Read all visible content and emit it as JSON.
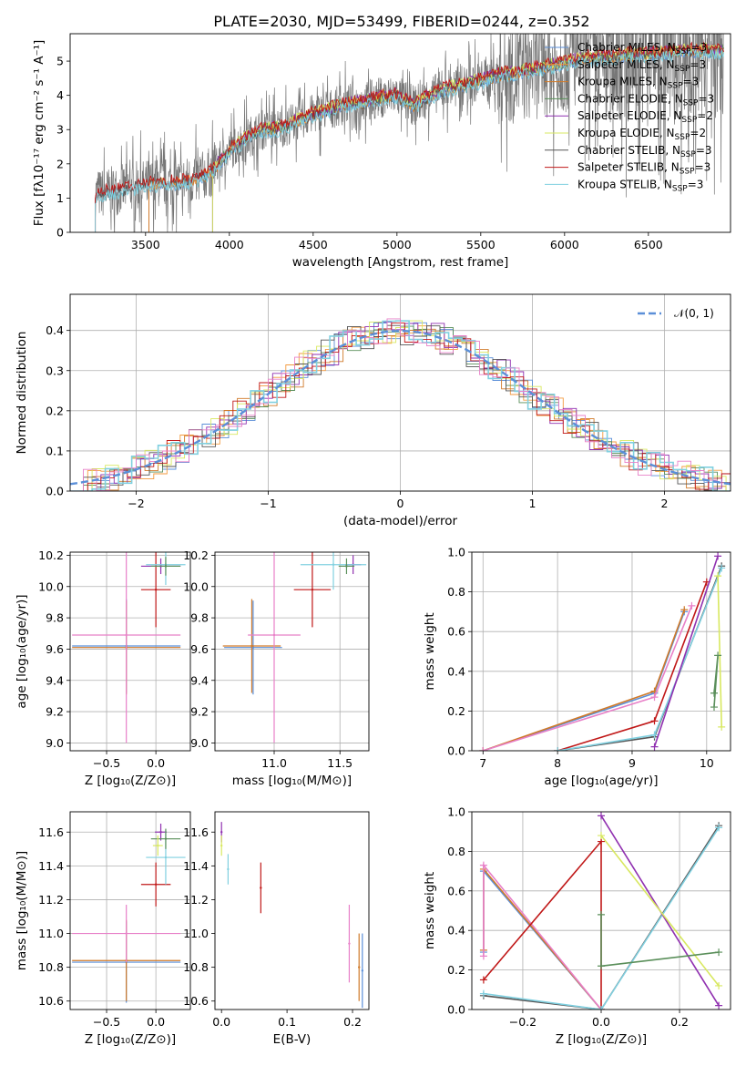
{
  "figure_title": "PLATE=2030, MJD=53499, FIBERID=0244, z=0.352",
  "colors": {
    "Chabrier MILES": "#5b8fd8",
    "Salpeter MILES": "#f39a3f",
    "Kroupa MILES": "#d07a2a",
    "Chabrier ELODIE": "#5a8f5a",
    "Salpeter ELODIE": "#9030b0",
    "Kroupa ELODIE": "#d8e860",
    "Chabrier STELIB": "#555555",
    "Salpeter STELIB": "#c01818",
    "Kroupa STELIB": "#80d0e0",
    "pink": "#e880c8",
    "data": "#777777",
    "gauss": "#5b8fd8"
  },
  "chart_data": [
    {
      "id": "spectrum",
      "type": "line",
      "title": "PLATE=2030, MJD=53499, FIBERID=0244, z=0.352",
      "xlabel": "wavelength [Angstrom, rest frame]",
      "ylabel": "Flux [fλ10⁻¹⁷ erg cm⁻² s⁻¹ A⁻¹]",
      "xlim": [
        3050,
        6990
      ],
      "ylim": [
        0,
        5.8
      ],
      "xticks": [
        3500,
        4000,
        4500,
        5000,
        5500,
        6000,
        6500
      ],
      "yticks": [
        0,
        1,
        2,
        3,
        4,
        5
      ],
      "legend": [
        {
          "name": "Chabrier MILES",
          "nssp": "3"
        },
        {
          "name": "Salpeter MILES",
          "nssp": "3"
        },
        {
          "name": "Kroupa MILES",
          "nssp": "3"
        },
        {
          "name": "Chabrier ELODIE",
          "nssp": "3"
        },
        {
          "name": "Salpeter ELODIE",
          "nssp": "2"
        },
        {
          "name": "Kroupa ELODIE",
          "nssp": "2"
        },
        {
          "name": "Chabrier STELIB",
          "nssp": "3"
        },
        {
          "name": "Salpeter STELIB",
          "nssp": "3"
        },
        {
          "name": "Kroupa STELIB",
          "nssp": "3"
        }
      ],
      "legend_placement": "right",
      "continuum": {
        "x": [
          3200,
          3300,
          3400,
          3500,
          3600,
          3700,
          3800,
          3900,
          4000,
          4100,
          4200,
          4300,
          4400,
          4500,
          4600,
          4700,
          4800,
          4900,
          5000,
          5100,
          5200,
          5300,
          5400,
          5500,
          5600,
          5700,
          5800,
          5900,
          6000,
          6100,
          6200,
          6300,
          6400,
          6500,
          6600,
          6700,
          6800
        ],
        "y": [
          1.1,
          1.2,
          1.3,
          1.4,
          1.45,
          1.45,
          1.55,
          1.8,
          2.4,
          2.75,
          3.0,
          3.05,
          3.25,
          3.45,
          3.6,
          3.75,
          3.8,
          3.95,
          4.0,
          3.7,
          4.0,
          4.2,
          4.3,
          4.45,
          4.6,
          4.65,
          4.75,
          4.85,
          4.95,
          5.1,
          5.1,
          5.15,
          5.2,
          5.2,
          5.25,
          5.3,
          5.3
        ]
      },
      "grid": false
    },
    {
      "id": "residuals",
      "type": "line",
      "xlabel": "(data-model)/error",
      "ylabel": "Normed distribution",
      "xlim": [
        -2.5,
        2.5
      ],
      "ylim": [
        0,
        0.49
      ],
      "xticks": [
        -2,
        -1,
        0,
        1,
        2
      ],
      "yticks": [
        0.0,
        0.1,
        0.2,
        0.3,
        0.4
      ],
      "legend": [
        {
          "name": "𝒩(0, 1)"
        }
      ],
      "legend_placement": "top-right",
      "grid": true
    },
    {
      "id": "age_vs_Z",
      "type": "scatter",
      "xlabel": "Z [log₁₀(Z/Z⊙)]",
      "ylabel": "age  [log₁₀(age/yr)]",
      "xlim": [
        -0.87,
        0.35
      ],
      "ylim": [
        8.95,
        10.22
      ],
      "xticks": [
        -0.5,
        0.0
      ],
      "yticks": [
        9.0,
        9.2,
        9.4,
        9.6,
        9.8,
        10.0,
        10.2
      ],
      "points": [
        {
          "series": "Chabrier MILES",
          "x": -0.3,
          "y": 9.62,
          "xerr": 0.55,
          "yerr": 0.3
        },
        {
          "series": "Kroupa MILES",
          "x": -0.3,
          "y": 9.61,
          "xerr": 0.55,
          "yerr": 0.3
        },
        {
          "series": "pink",
          "x": -0.3,
          "y": 9.69,
          "xerr": 0.55,
          "yerr": 0.69
        },
        {
          "series": "Salpeter STELIB",
          "x": 0.0,
          "y": 9.98,
          "xerr": 0.15,
          "yerr": 0.24
        },
        {
          "series": "Salpeter ELODIE",
          "x": 0.05,
          "y": 10.13,
          "xerr": 0.2,
          "yerr": 0.05
        },
        {
          "series": "Kroupa STELIB",
          "x": 0.1,
          "y": 10.14,
          "xerr": 0.2,
          "yerr": 0.13
        },
        {
          "series": "Chabrier ELODIE",
          "x": 0.1,
          "y": 10.13,
          "xerr": 0.15,
          "yerr": 0.06
        }
      ],
      "grid": true
    },
    {
      "id": "age_vs_mass",
      "type": "scatter",
      "xlabel": "mass [log₁₀(M/M⊙)]",
      "ylabel": "",
      "xlim": [
        10.55,
        11.72
      ],
      "ylim": [
        8.95,
        10.22
      ],
      "xticks": [
        11.0,
        11.5
      ],
      "yticks": [
        9.0,
        9.2,
        9.4,
        9.6,
        9.8,
        10.0,
        10.2
      ],
      "points": [
        {
          "series": "Chabrier MILES",
          "x": 10.84,
          "y": 9.61,
          "xerr": 0.22,
          "yerr": 0.3
        },
        {
          "series": "Kroupa MILES",
          "x": 10.83,
          "y": 9.62,
          "xerr": 0.22,
          "yerr": 0.3
        },
        {
          "series": "pink",
          "x": 11.0,
          "y": 9.69,
          "xerr": 0.2,
          "yerr": 0.69
        },
        {
          "series": "Salpeter STELIB",
          "x": 11.29,
          "y": 9.98,
          "xerr": 0.14,
          "yerr": 0.24
        },
        {
          "series": "Salpeter ELODIE",
          "x": 11.6,
          "y": 10.14,
          "xerr": 0.06,
          "yerr": 0.06
        },
        {
          "series": "Kroupa STELIB",
          "x": 11.45,
          "y": 10.14,
          "xerr": 0.25,
          "yerr": 0.16
        },
        {
          "series": "Chabrier ELODIE",
          "x": 11.55,
          "y": 10.13,
          "xerr": 0.06,
          "yerr": 0.05
        }
      ],
      "grid": true
    },
    {
      "id": "weight_vs_age",
      "type": "line",
      "xlabel": "age  [log₁₀(age/yr)]",
      "ylabel": "mass weight",
      "xlim": [
        6.85,
        10.32
      ],
      "ylim": [
        0,
        1.0
      ],
      "xticks": [
        7,
        8,
        9,
        10
      ],
      "yticks": [
        0.0,
        0.2,
        0.4,
        0.6,
        0.8,
        1.0
      ],
      "series": [
        {
          "name": "Chabrier MILES",
          "x": [
            7.0,
            9.3,
            9.7
          ],
          "y": [
            0.0,
            0.29,
            0.7
          ]
        },
        {
          "name": "Kroupa MILES",
          "x": [
            7.0,
            9.3,
            9.7
          ],
          "y": [
            0.0,
            0.3,
            0.71
          ]
        },
        {
          "name": "pink",
          "x": [
            7.0,
            9.3,
            9.8
          ],
          "y": [
            0.0,
            0.27,
            0.73
          ]
        },
        {
          "name": "Salpeter STELIB",
          "x": [
            8.0,
            9.3,
            10.0
          ],
          "y": [
            0.0,
            0.15,
            0.85
          ]
        },
        {
          "name": "Chabrier STELIB",
          "x": [
            8.0,
            9.3,
            10.2
          ],
          "y": [
            0.0,
            0.07,
            0.93
          ]
        },
        {
          "name": "Kroupa STELIB",
          "x": [
            8.0,
            9.3,
            10.2
          ],
          "y": [
            0.0,
            0.08,
            0.92
          ]
        },
        {
          "name": "Salpeter ELODIE",
          "x": [
            9.3,
            10.15
          ],
          "y": [
            0.02,
            0.98
          ]
        },
        {
          "name": "Kroupa ELODIE",
          "x": [
            10.15,
            10.2
          ],
          "y": [
            0.88,
            0.12
          ]
        },
        {
          "name": "Chabrier ELODIE",
          "x": [
            10.1,
            10.15,
            10.1
          ],
          "y": [
            0.22,
            0.48,
            0.29
          ]
        }
      ],
      "grid": true
    },
    {
      "id": "mass_vs_Z",
      "type": "scatter",
      "xlabel": "Z [log₁₀(Z/Z⊙)]",
      "ylabel": "mass [log₁₀(M/M⊙)]",
      "xlim": [
        -0.87,
        0.35
      ],
      "ylim": [
        10.55,
        11.72
      ],
      "xticks": [
        -0.5,
        0.0
      ],
      "yticks": [
        10.6,
        10.8,
        11.0,
        11.2,
        11.4,
        11.6
      ],
      "points": [
        {
          "series": "Chabrier MILES",
          "x": -0.3,
          "y": 10.83,
          "xerr": 0.55,
          "yerr": 0.24
        },
        {
          "series": "Kroupa MILES",
          "x": -0.3,
          "y": 10.84,
          "xerr": 0.55,
          "yerr": 0.24
        },
        {
          "series": "pink",
          "x": -0.3,
          "y": 11.0,
          "xerr": 0.55,
          "yerr": 0.17
        },
        {
          "series": "Salpeter STELIB",
          "x": 0.0,
          "y": 11.29,
          "xerr": 0.15,
          "yerr": 0.13
        },
        {
          "series": "Salpeter ELODIE",
          "x": 0.05,
          "y": 11.6,
          "xerr": 0.06,
          "yerr": 0.05
        },
        {
          "series": "Kroupa STELIB",
          "x": 0.1,
          "y": 11.45,
          "xerr": 0.2,
          "yerr": 0.16
        },
        {
          "series": "Chabrier ELODIE",
          "x": 0.1,
          "y": 11.56,
          "xerr": 0.15,
          "yerr": 0.06
        },
        {
          "series": "Kroupa ELODIE",
          "x": 0.02,
          "y": 11.52,
          "xerr": 0.05,
          "yerr": 0.06
        }
      ],
      "grid": true
    },
    {
      "id": "mass_vs_ebv",
      "type": "scatter",
      "xlabel": "E(B-V)",
      "ylabel": "",
      "xlim": [
        -0.01,
        0.225
      ],
      "ylim": [
        10.55,
        11.72
      ],
      "xticks": [
        0.0,
        0.1,
        0.2
      ],
      "yticks": [
        10.6,
        10.8,
        11.0,
        11.2,
        11.4,
        11.6
      ],
      "points": [
        {
          "series": "Salpeter ELODIE",
          "x": 0.0,
          "y": 11.6,
          "yerr": 0.06
        },
        {
          "series": "Kroupa ELODIE",
          "x": 0.0,
          "y": 11.52,
          "yerr": 0.06
        },
        {
          "series": "Kroupa STELIB",
          "x": 0.01,
          "y": 11.38,
          "yerr": 0.09
        },
        {
          "series": "Salpeter STELIB",
          "x": 0.06,
          "y": 11.27,
          "yerr": 0.15
        },
        {
          "series": "pink",
          "x": 0.195,
          "y": 10.94,
          "yerr": 0.23
        },
        {
          "series": "Kroupa MILES",
          "x": 0.21,
          "y": 10.8,
          "yerr": 0.2
        },
        {
          "series": "Chabrier MILES",
          "x": 0.215,
          "y": 10.78,
          "yerr": 0.22
        }
      ],
      "grid": false
    },
    {
      "id": "weight_vs_Z",
      "type": "line",
      "xlabel": "Z [log₁₀(Z/Z⊙)]",
      "ylabel": "mass weight",
      "xlim": [
        -0.33,
        0.33
      ],
      "ylim": [
        0,
        1.0
      ],
      "xticks": [
        -0.2,
        0.0,
        0.2
      ],
      "yticks": [
        0.0,
        0.2,
        0.4,
        0.6,
        0.8,
        1.0
      ],
      "series": [
        {
          "name": "Chabrier MILES",
          "x": [
            -0.3,
            -0.3,
            0.0
          ],
          "y": [
            0.29,
            0.7,
            0.0
          ]
        },
        {
          "name": "Kroupa MILES",
          "x": [
            -0.3,
            -0.3,
            0.0
          ],
          "y": [
            0.3,
            0.71,
            0.0
          ]
        },
        {
          "name": "pink",
          "x": [
            -0.3,
            -0.3,
            0.0
          ],
          "y": [
            0.27,
            0.73,
            0.0
          ]
        },
        {
          "name": "Salpeter STELIB",
          "x": [
            -0.3,
            0.0,
            0.0
          ],
          "y": [
            0.15,
            0.85,
            0.0
          ]
        },
        {
          "name": "Chabrier STELIB",
          "x": [
            -0.3,
            0.0,
            0.3
          ],
          "y": [
            0.07,
            0.0,
            0.93
          ]
        },
        {
          "name": "Kroupa STELIB",
          "x": [
            -0.3,
            0.0,
            0.3
          ],
          "y": [
            0.08,
            0.0,
            0.92
          ]
        },
        {
          "name": "Salpeter ELODIE",
          "x": [
            0.0,
            0.3
          ],
          "y": [
            0.98,
            0.02
          ]
        },
        {
          "name": "Kroupa ELODIE",
          "x": [
            0.0,
            0.3
          ],
          "y": [
            0.88,
            0.12
          ]
        },
        {
          "name": "Chabrier ELODIE",
          "x": [
            0.0,
            0.0,
            0.3
          ],
          "y": [
            0.48,
            0.22,
            0.29
          ]
        }
      ],
      "grid": true
    }
  ]
}
